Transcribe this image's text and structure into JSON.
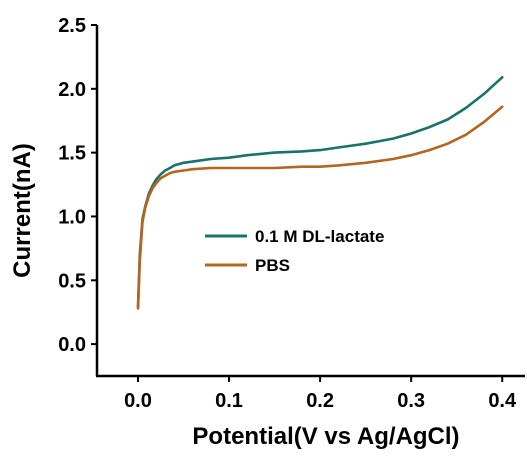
{
  "chart_data": {
    "type": "line",
    "title": "",
    "xlabel": "Potential(V vs Ag/AgCl)",
    "ylabel": "Current(nA)",
    "xlim": [
      -0.045,
      0.425
    ],
    "ylim": [
      -0.25,
      2.5
    ],
    "xticks": [
      "0.0",
      "0.1",
      "0.2",
      "0.3",
      "0.4"
    ],
    "yticks": [
      "0.0",
      "0.5",
      "1.0",
      "1.5",
      "2.0",
      "2.5"
    ],
    "legend_position": "center",
    "grid": false,
    "series": [
      {
        "name": "0.1 M DL-lactate",
        "color": "#17736b",
        "x": [
          0.0,
          0.002,
          0.005,
          0.008,
          0.012,
          0.016,
          0.02,
          0.025,
          0.03,
          0.035,
          0.04,
          0.05,
          0.06,
          0.08,
          0.1,
          0.12,
          0.15,
          0.18,
          0.2,
          0.22,
          0.25,
          0.28,
          0.3,
          0.32,
          0.34,
          0.36,
          0.38,
          0.4
        ],
        "values": [
          0.29,
          0.7,
          0.98,
          1.08,
          1.18,
          1.24,
          1.29,
          1.33,
          1.36,
          1.38,
          1.4,
          1.42,
          1.43,
          1.45,
          1.46,
          1.48,
          1.5,
          1.51,
          1.52,
          1.54,
          1.57,
          1.61,
          1.65,
          1.7,
          1.76,
          1.85,
          1.96,
          2.09
        ]
      },
      {
        "name": "PBS",
        "color": "#b5651d",
        "x": [
          0.0,
          0.002,
          0.005,
          0.008,
          0.012,
          0.016,
          0.02,
          0.025,
          0.03,
          0.035,
          0.04,
          0.05,
          0.06,
          0.08,
          0.1,
          0.12,
          0.15,
          0.18,
          0.2,
          0.22,
          0.25,
          0.28,
          0.3,
          0.32,
          0.34,
          0.36,
          0.38,
          0.4
        ],
        "values": [
          0.28,
          0.65,
          0.96,
          1.07,
          1.16,
          1.22,
          1.26,
          1.3,
          1.32,
          1.34,
          1.35,
          1.36,
          1.37,
          1.38,
          1.38,
          1.38,
          1.38,
          1.39,
          1.39,
          1.4,
          1.42,
          1.45,
          1.48,
          1.52,
          1.57,
          1.64,
          1.74,
          1.86
        ]
      }
    ]
  }
}
